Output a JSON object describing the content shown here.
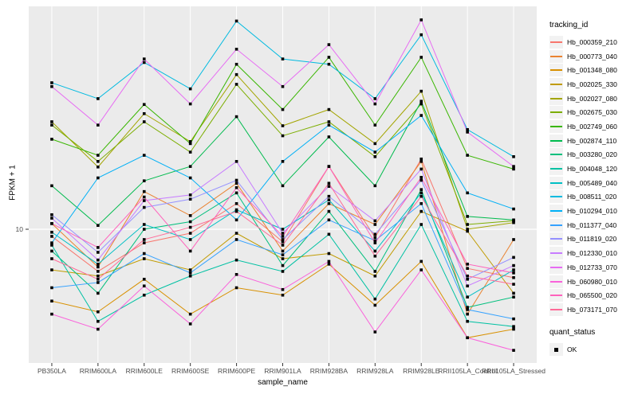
{
  "chart_data": {
    "type": "line",
    "xlabel": "sample_name",
    "ylabel": "FPKM + 1",
    "y_scale": "log10",
    "y_ticks": [
      10
    ],
    "y_tick_labels": [
      "10"
    ],
    "panel_bg": "#EBEBEB",
    "grid_color": "#FFFFFF",
    "point_shape": "filled-square",
    "point_color": "#000000",
    "legend_position": "right",
    "categories": [
      "PB350LA",
      "RRIM600LA",
      "RRIM600LE",
      "RRIM600SE",
      "RRIM600PE",
      "RRIM901LA",
      "RRIM928BA",
      "RRIM928LA",
      "RRIM928LE",
      "RRII105LA_Control",
      "RRII105LA_Stressed"
    ],
    "series": [
      {
        "name": "Hb_000359_210",
        "color": "#F8766D",
        "values": [
          9.3,
          6.5,
          8.7,
          9.6,
          13.0,
          8.8,
          19.0,
          9.2,
          20.5,
          6.7,
          6.1
        ]
      },
      {
        "name": "Hb_000773_040",
        "color": "#EA8331",
        "values": [
          10.6,
          6.8,
          14.7,
          11.5,
          16.0,
          8.0,
          13.0,
          10.5,
          20.0,
          4.2,
          9.0
        ]
      },
      {
        "name": "Hb_001348_080",
        "color": "#D89000",
        "values": [
          4.8,
          4.3,
          6.0,
          4.2,
          5.5,
          5.1,
          7.0,
          4.6,
          7.2,
          3.3,
          3.6
        ]
      },
      {
        "name": "Hb_002025_330",
        "color": "#C09B00",
        "values": [
          6.6,
          6.2,
          7.4,
          6.6,
          9.6,
          7.4,
          7.8,
          6.2,
          12.0,
          9.8,
          5.2
        ]
      },
      {
        "name": "Hb_002027_080",
        "color": "#A3A500",
        "values": [
          30.0,
          18.9,
          32.6,
          24.5,
          48.6,
          28.8,
          34.0,
          24.0,
          41.0,
          10.0,
          10.7
        ]
      },
      {
        "name": "Hb_002675_030",
        "color": "#7CAE00",
        "values": [
          29.0,
          20.0,
          30.0,
          22.0,
          44.0,
          26.0,
          30.0,
          21.0,
          36.0,
          10.5,
          10.9
        ]
      },
      {
        "name": "Hb_002749_060",
        "color": "#39B600",
        "values": [
          25.1,
          21.3,
          35.8,
          24.0,
          54.0,
          34.0,
          58.0,
          29.0,
          58.0,
          21.3,
          18.5
        ]
      },
      {
        "name": "Hb_002874_110",
        "color": "#00BB4E",
        "values": [
          15.6,
          10.4,
          16.4,
          19.0,
          31.6,
          15.6,
          25.7,
          15.6,
          37.0,
          11.4,
          11.0
        ]
      },
      {
        "name": "Hb_003280_020",
        "color": "#00BF7D",
        "values": [
          8.0,
          5.2,
          10.0,
          10.8,
          14.5,
          6.9,
          12.0,
          6.5,
          15.0,
          4.5,
          5.0
        ]
      },
      {
        "name": "Hb_004048_120",
        "color": "#00C1A3",
        "values": [
          8.5,
          3.9,
          5.1,
          6.2,
          7.3,
          6.5,
          9.5,
          4.9,
          10.5,
          3.9,
          3.7
        ]
      },
      {
        "name": "Hb_005489_040",
        "color": "#00BFC4",
        "values": [
          9.7,
          7.0,
          10.5,
          9.0,
          12.2,
          10.0,
          13.5,
          8.0,
          14.5,
          5.0,
          6.6
        ]
      },
      {
        "name": "Hb_008511_020",
        "color": "#00BAE0",
        "values": [
          44.7,
          38.0,
          55.0,
          42.0,
          84.0,
          57.0,
          54.0,
          38.0,
          73.0,
          27.7,
          21.0
        ]
      },
      {
        "name": "Hb_010294_010",
        "color": "#00B0F6",
        "values": [
          8.7,
          16.9,
          21.3,
          16.9,
          11.0,
          20.0,
          29.0,
          22.0,
          32.0,
          14.5,
          12.3
        ]
      },
      {
        "name": "Hb_011377_040",
        "color": "#35A2FF",
        "values": [
          5.5,
          5.8,
          7.8,
          6.4,
          9.0,
          7.7,
          11.0,
          8.9,
          13.0,
          4.4,
          4.0
        ]
      },
      {
        "name": "Hb_011819_020",
        "color": "#9590FF",
        "values": [
          11.6,
          7.9,
          12.5,
          13.6,
          16.5,
          9.0,
          14.0,
          9.5,
          16.5,
          6.0,
          7.5
        ]
      },
      {
        "name": "Hb_012330_010",
        "color": "#C77CFF",
        "values": [
          11.2,
          7.3,
          13.4,
          14.2,
          20.0,
          9.6,
          15.5,
          10.9,
          18.5,
          5.6,
          6.9
        ]
      },
      {
        "name": "Hb_012733_070",
        "color": "#E76BF3",
        "values": [
          43.0,
          29.0,
          57.0,
          36.0,
          63.0,
          43.0,
          66.0,
          36.0,
          85.0,
          27.0,
          19.0
        ]
      },
      {
        "name": "Hb_060980_010",
        "color": "#FA62DB",
        "values": [
          4.2,
          3.6,
          5.6,
          3.8,
          6.3,
          5.4,
          7.2,
          3.5,
          6.6,
          3.3,
          2.9
        ]
      },
      {
        "name": "Hb_065500_020",
        "color": "#FF62BC",
        "values": [
          10.6,
          8.3,
          13.9,
          8.0,
          15.3,
          9.3,
          19.0,
          8.7,
          17.0,
          7.0,
          6.4
        ]
      },
      {
        "name": "Hb_073171_070",
        "color": "#FF6A98",
        "values": [
          7.4,
          6.0,
          9.0,
          10.2,
          12.0,
          8.5,
          16.0,
          7.6,
          14.0,
          6.2,
          5.7
        ]
      }
    ],
    "legend": {
      "tracking_title": "tracking_id",
      "quant_title": "quant_status",
      "quant_items": [
        {
          "label": "OK",
          "shape": "filled-square",
          "color": "#000000"
        }
      ]
    }
  }
}
